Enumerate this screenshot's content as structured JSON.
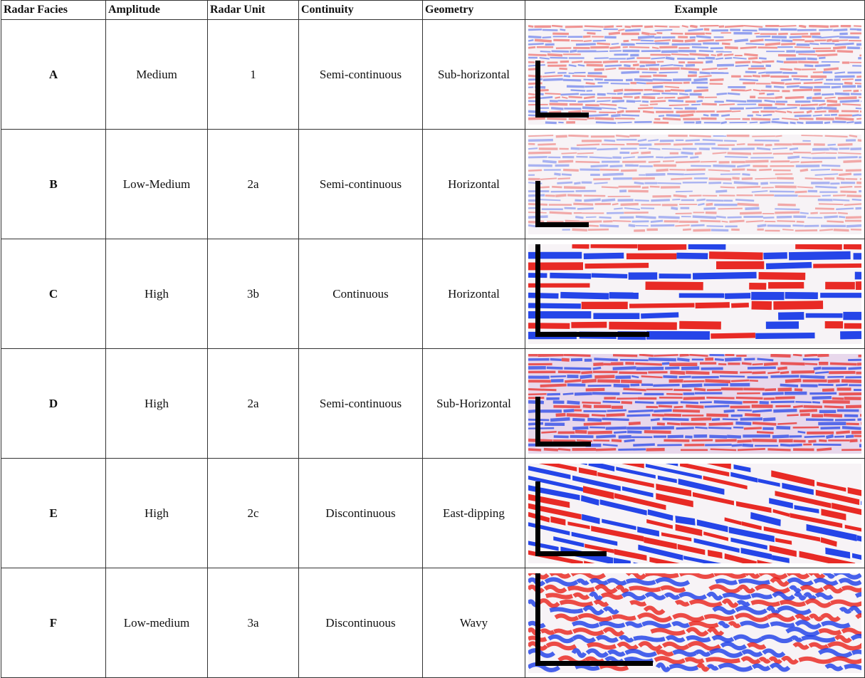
{
  "table": {
    "headers": [
      "Radar Facies",
      "Amplitude",
      "Radar Unit",
      "Continuity",
      "Geometry",
      "Example"
    ],
    "rows": [
      [
        "A",
        "Medium",
        "1",
        "Semi-continuous",
        "Sub-horizontal"
      ],
      [
        "B",
        "Low-Medium",
        "2a",
        "Semi-continuous",
        "Horizontal"
      ],
      [
        "C",
        "High",
        "3b",
        "Continuous",
        "Horizontal"
      ],
      [
        "D",
        "High",
        "2a",
        "Semi-continuous",
        "Sub-Horizontal"
      ],
      [
        "E",
        "High",
        "2c",
        "Discontinuous",
        "East-dipping"
      ],
      [
        "F",
        "Low-medium",
        "3a",
        "Discontinuous",
        "Wavy"
      ]
    ]
  }
}
